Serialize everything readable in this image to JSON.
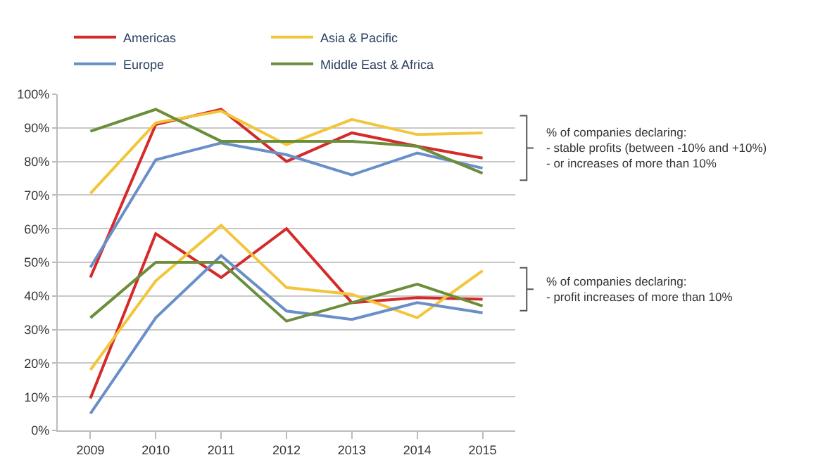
{
  "chart_data": {
    "type": "line",
    "categories": [
      "2009",
      "2010",
      "2011",
      "2012",
      "2013",
      "2014",
      "2015"
    ],
    "series": [
      {
        "name": "Americas",
        "color": "#d62a2a",
        "values": [
          45.5,
          91,
          95.5,
          80,
          88.5,
          84.5,
          81
        ]
      },
      {
        "name": "Asia & Pacific",
        "color": "#f3c53a",
        "values": [
          70.5,
          91.5,
          95,
          85,
          92.5,
          88,
          88.5
        ]
      },
      {
        "name": "Europe",
        "color": "#6a8fc8",
        "values": [
          48.5,
          80.5,
          85.5,
          82,
          76,
          82.5,
          78
        ]
      },
      {
        "name": "Middle East & Africa",
        "color": "#6b8e3a",
        "values": [
          89,
          95.5,
          86,
          86,
          86,
          84.5,
          76.5
        ]
      },
      {
        "color": "#d62a2a",
        "values": [
          9.5,
          58.5,
          45.5,
          60,
          38,
          39.5,
          39
        ]
      },
      {
        "color": "#f3c53a",
        "values": [
          18,
          44.5,
          61,
          42.5,
          40.5,
          33.5,
          47.5
        ]
      },
      {
        "color": "#6a8fc8",
        "values": [
          5,
          33.5,
          52,
          35.5,
          33,
          38,
          35
        ]
      },
      {
        "color": "#6b8e3a",
        "values": [
          33.5,
          50,
          50,
          32.5,
          38,
          43.5,
          37
        ]
      }
    ],
    "ylim": [
      0,
      100
    ],
    "yticks": [
      {
        "value": 0,
        "label": "0%"
      },
      {
        "value": 10,
        "label": "10%"
      },
      {
        "value": 20,
        "label": "20%"
      },
      {
        "value": 30,
        "label": "30%"
      },
      {
        "value": 40,
        "label": "40%"
      },
      {
        "value": 50,
        "label": "50%"
      },
      {
        "value": 60,
        "label": "60%"
      },
      {
        "value": 70,
        "label": "70%"
      },
      {
        "value": 80,
        "label": "80%"
      },
      {
        "value": 90,
        "label": "90%"
      },
      {
        "value": 100,
        "label": "100%"
      }
    ],
    "grid": "y",
    "legend": "top",
    "marker": "none",
    "line_style": "solid",
    "annotations": [
      "% of companies declaring:\n- stable profits (between -10% and +10%)\n- or increases of more than 10%",
      "% of companies declaring:\n- profit increases of more than 10%"
    ]
  }
}
